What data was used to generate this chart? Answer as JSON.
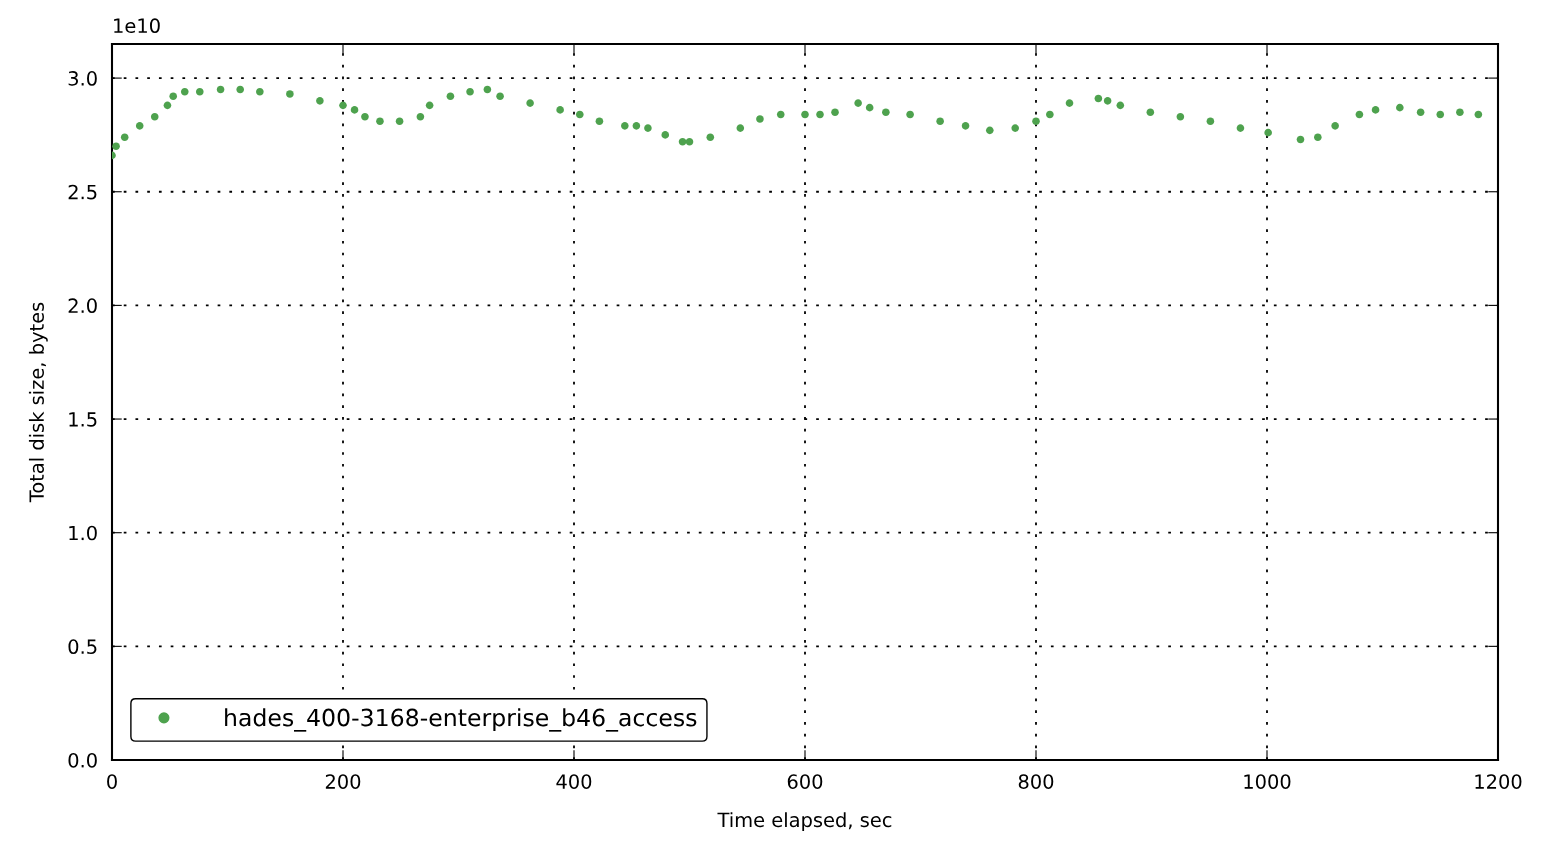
{
  "chart_data": {
    "type": "scatter",
    "xlabel": "Time elapsed, sec",
    "ylabel": "Total disk size, bytes",
    "annotations": [
      "1e10"
    ],
    "xlim": [
      0,
      1200
    ],
    "xticks": [
      0,
      200,
      400,
      600,
      800,
      1000,
      1200
    ],
    "ylim": [
      0,
      3.15
    ],
    "yticks": [
      {
        "value": 0,
        "label": "0.0"
      },
      0.5,
      {
        "value": 1,
        "label": "1.0"
      },
      1.5,
      {
        "value": 2,
        "label": "2.0"
      },
      2.5,
      {
        "value": 3,
        "label": "3.0"
      }
    ],
    "grid": true,
    "legend": "bottom left",
    "marker": "circle",
    "series": [
      {
        "name": "hades_400-3168-enterprise_b46_access",
        "color": "#4ea24e",
        "x": [
          0,
          3.5,
          11,
          24,
          37,
          48,
          53,
          63,
          76,
          94,
          111,
          128,
          154,
          180,
          200,
          210,
          219,
          232,
          249,
          267,
          275,
          293,
          310,
          325,
          336,
          362,
          388,
          405,
          422,
          444,
          454,
          464,
          479,
          494,
          500,
          518,
          544,
          561,
          579,
          600,
          613,
          626,
          646,
          656,
          670,
          691,
          717,
          739,
          760,
          782,
          800,
          812,
          829,
          854,
          862,
          873,
          899,
          925,
          951,
          977,
          1001,
          1029,
          1044,
          1059,
          1080,
          1094,
          1115,
          1133,
          1150,
          1167,
          1183
        ],
        "values": [
          2.66,
          2.7,
          2.74,
          2.79,
          2.83,
          2.88,
          2.92,
          2.94,
          2.94,
          2.95,
          2.95,
          2.94,
          2.93,
          2.9,
          2.88,
          2.86,
          2.83,
          2.81,
          2.81,
          2.83,
          2.88,
          2.92,
          2.94,
          2.95,
          2.92,
          2.89,
          2.86,
          2.84,
          2.81,
          2.79,
          2.79,
          2.78,
          2.75,
          2.72,
          2.72,
          2.74,
          2.78,
          2.82,
          2.84,
          2.84,
          2.84,
          2.85,
          2.89,
          2.87,
          2.85,
          2.84,
          2.81,
          2.79,
          2.77,
          2.78,
          2.81,
          2.84,
          2.89,
          2.91,
          2.9,
          2.88,
          2.85,
          2.83,
          2.81,
          2.78,
          2.76,
          2.73,
          2.74,
          2.79,
          2.84,
          2.86,
          2.87,
          2.85,
          2.84,
          2.85,
          2.84
        ]
      }
    ]
  }
}
